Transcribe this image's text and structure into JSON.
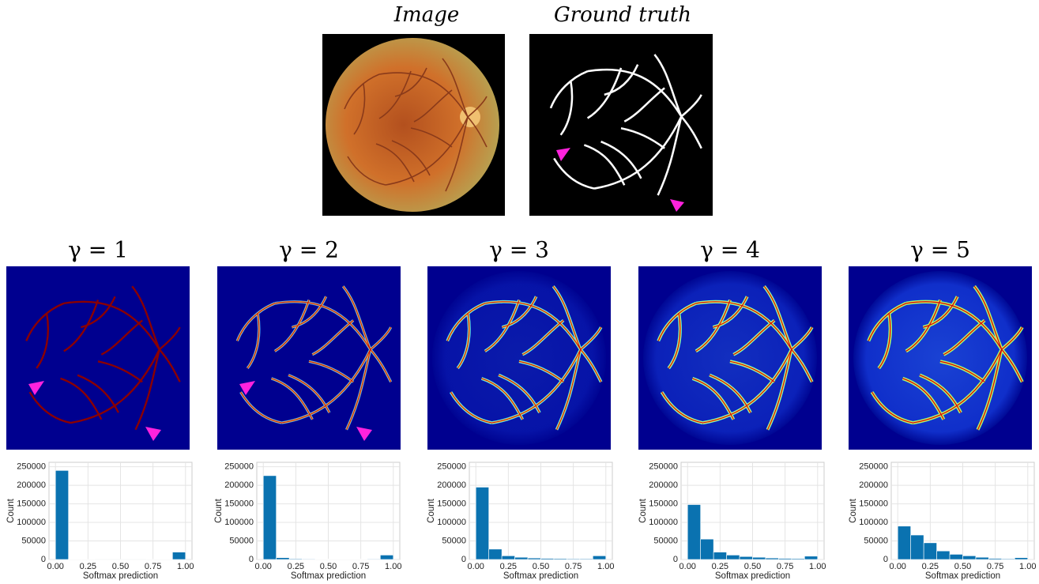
{
  "panels": {
    "image_title": "Image",
    "ground_truth_title": "Ground truth"
  },
  "chart_data": [
    {
      "type": "histogram",
      "title": "γ = 1",
      "xlabel": "Softmax prediction",
      "ylabel": "Count",
      "color": "#0a72b0",
      "grid": true,
      "bins": [
        0,
        0.1,
        0.2,
        0.3,
        0.4,
        0.5,
        0.6,
        0.7,
        0.8,
        0.9,
        1.0
      ],
      "values": [
        240000,
        1000,
        500,
        300,
        300,
        300,
        300,
        400,
        800,
        20000
      ],
      "xlim": [
        -0.05,
        1.05
      ],
      "ylim": [
        0,
        262000
      ],
      "xticks": [
        {
          "value": 0,
          "label": "0.00"
        },
        {
          "value": 0.25,
          "label": "0.25"
        },
        {
          "value": 0.5,
          "label": "0.50"
        },
        {
          "value": 0.75,
          "label": "0.75"
        },
        {
          "value": 1,
          "label": "1.00"
        }
      ],
      "yticks": [
        0,
        50000,
        100000,
        150000,
        200000,
        250000
      ]
    },
    {
      "type": "histogram",
      "title": "γ = 2",
      "xlabel": "Softmax prediction",
      "ylabel": "Count",
      "color": "#0a72b0",
      "grid": true,
      "bins": [
        0,
        0.1,
        0.2,
        0.3,
        0.4,
        0.5,
        0.6,
        0.7,
        0.8,
        0.9,
        1.0
      ],
      "values": [
        226000,
        5000,
        2000,
        1500,
        1000,
        1000,
        1000,
        1000,
        1500,
        12000
      ],
      "xlim": [
        -0.05,
        1.05
      ],
      "ylim": [
        0,
        262000
      ],
      "xticks": [
        {
          "value": 0,
          "label": "0.00"
        },
        {
          "value": 0.25,
          "label": "0.25"
        },
        {
          "value": 0.5,
          "label": "0.50"
        },
        {
          "value": 0.75,
          "label": "0.75"
        },
        {
          "value": 1,
          "label": "1.00"
        }
      ],
      "yticks": [
        0,
        50000,
        100000,
        150000,
        200000,
        250000
      ]
    },
    {
      "type": "histogram",
      "title": "γ = 3",
      "xlabel": "Softmax prediction",
      "ylabel": "Count",
      "color": "#0a72b0",
      "grid": true,
      "bins": [
        0,
        0.1,
        0.2,
        0.3,
        0.4,
        0.5,
        0.6,
        0.7,
        0.8,
        0.9,
        1.0
      ],
      "values": [
        195000,
        28000,
        10000,
        6000,
        4000,
        3000,
        2500,
        2000,
        2000,
        10000
      ],
      "xlim": [
        -0.05,
        1.05
      ],
      "ylim": [
        0,
        262000
      ],
      "xticks": [
        {
          "value": 0,
          "label": "0.00"
        },
        {
          "value": 0.25,
          "label": "0.25"
        },
        {
          "value": 0.5,
          "label": "0.50"
        },
        {
          "value": 0.75,
          "label": "0.75"
        },
        {
          "value": 1,
          "label": "1.00"
        }
      ],
      "yticks": [
        0,
        50000,
        100000,
        150000,
        200000,
        250000
      ]
    },
    {
      "type": "histogram",
      "title": "γ = 4",
      "xlabel": "Softmax prediction",
      "ylabel": "Count",
      "color": "#0a72b0",
      "grid": true,
      "bins": [
        0,
        0.1,
        0.2,
        0.3,
        0.4,
        0.5,
        0.6,
        0.7,
        0.8,
        0.9,
        1.0
      ],
      "values": [
        148000,
        55000,
        20000,
        12000,
        8000,
        6000,
        4000,
        3000,
        2500,
        9000
      ],
      "xlim": [
        -0.05,
        1.05
      ],
      "ylim": [
        0,
        262000
      ],
      "xticks": [
        {
          "value": 0,
          "label": "0.00"
        },
        {
          "value": 0.25,
          "label": "0.25"
        },
        {
          "value": 0.5,
          "label": "0.50"
        },
        {
          "value": 0.75,
          "label": "0.75"
        },
        {
          "value": 1,
          "label": "1.00"
        }
      ],
      "yticks": [
        0,
        50000,
        100000,
        150000,
        200000,
        250000
      ]
    },
    {
      "type": "histogram",
      "title": "γ = 5",
      "xlabel": "Softmax prediction",
      "ylabel": "Count",
      "color": "#0a72b0",
      "grid": true,
      "bins": [
        0,
        0.1,
        0.2,
        0.3,
        0.4,
        0.5,
        0.6,
        0.7,
        0.8,
        0.9,
        1.0
      ],
      "values": [
        90000,
        66000,
        45000,
        23000,
        14000,
        10000,
        6000,
        3000,
        2000,
        5000
      ],
      "xlim": [
        -0.05,
        1.05
      ],
      "ylim": [
        0,
        262000
      ],
      "xticks": [
        {
          "value": 0,
          "label": "0.00"
        },
        {
          "value": 0.25,
          "label": "0.25"
        },
        {
          "value": 0.5,
          "label": "0.50"
        },
        {
          "value": 0.75,
          "label": "0.75"
        },
        {
          "value": 1,
          "label": "1.00"
        }
      ],
      "yticks": [
        0,
        50000,
        100000,
        150000,
        200000,
        250000
      ]
    }
  ]
}
